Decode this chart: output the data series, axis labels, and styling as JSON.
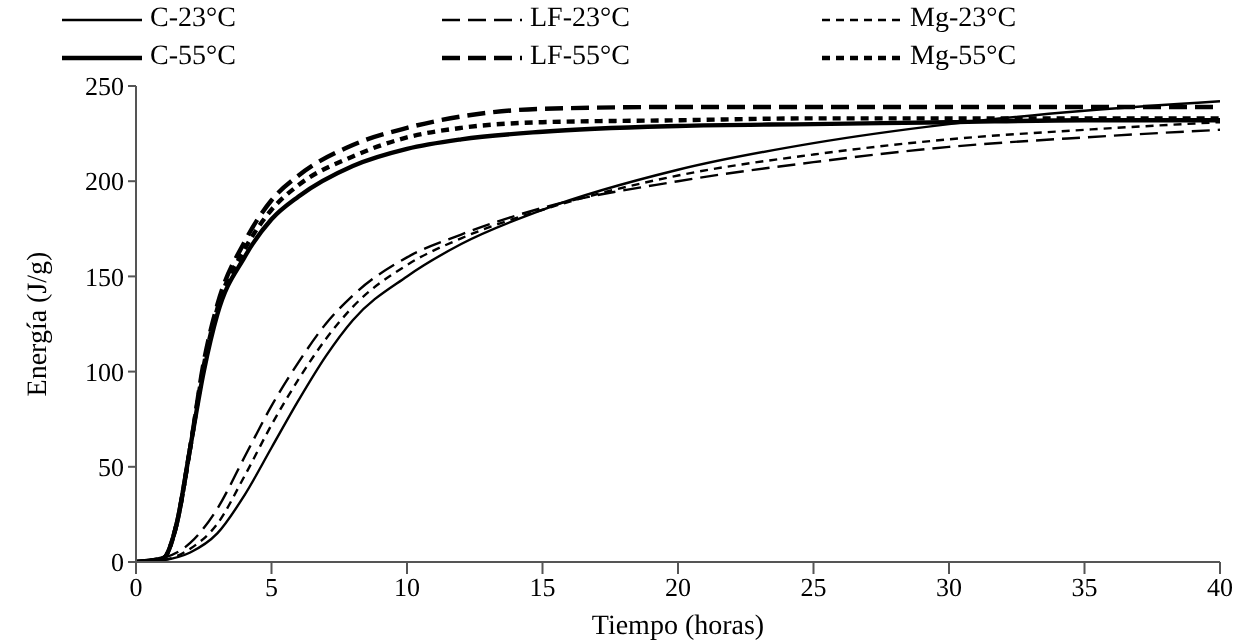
{
  "chart_data": {
    "type": "line",
    "xlabel": "Tiempo (horas)",
    "ylabel": "Energía (J/g)",
    "xlim": [
      0,
      40
    ],
    "xticks": [
      0,
      5,
      10,
      15,
      20,
      25,
      30,
      35,
      40
    ],
    "ylim": [
      0,
      250
    ],
    "yticks": [
      0,
      50,
      100,
      150,
      200,
      250
    ],
    "grid": false,
    "legend": "top",
    "marker": "none",
    "series": [
      {
        "name": "C-23°C",
        "color": "#000000",
        "line_style": "solid",
        "x": [
          0,
          1,
          2,
          3,
          4,
          5,
          6,
          7,
          8,
          10,
          12,
          15,
          20,
          25,
          30,
          35,
          40
        ],
        "values": [
          0,
          1,
          5,
          15,
          35,
          60,
          85,
          108,
          127,
          150,
          167,
          185,
          206,
          220,
          230,
          237,
          242
        ]
      },
      {
        "name": "LF-23°C",
        "color": "#000000",
        "line_style": "dashed",
        "x": [
          0,
          1,
          2,
          3,
          4,
          5,
          6,
          7,
          8,
          10,
          12,
          15,
          20,
          25,
          30,
          35,
          40
        ],
        "values": [
          0,
          2,
          10,
          28,
          55,
          82,
          105,
          125,
          140,
          160,
          172,
          186,
          200,
          210,
          218,
          223,
          227
        ]
      },
      {
        "name": "Mg-23°C",
        "color": "#000000",
        "line_style": "dotted",
        "x": [
          0,
          1,
          2,
          3,
          4,
          5,
          6,
          7,
          8,
          10,
          12,
          15,
          20,
          25,
          30,
          35,
          40
        ],
        "values": [
          0,
          1,
          7,
          20,
          45,
          72,
          96,
          117,
          134,
          156,
          170,
          185,
          203,
          214,
          222,
          227,
          231
        ]
      },
      {
        "name": "C-55°C",
        "color": "#000000",
        "line_style": "solid",
        "x": [
          0,
          1,
          1.5,
          2,
          2.5,
          3,
          4,
          5,
          6,
          8,
          10,
          12,
          15,
          20,
          25,
          30,
          35,
          40
        ],
        "values": [
          0,
          2,
          20,
          60,
          100,
          130,
          160,
          180,
          192,
          208,
          217,
          222,
          226,
          229,
          230,
          231,
          232,
          232
        ]
      },
      {
        "name": "LF-55°C",
        "color": "#000000",
        "line_style": "dashed",
        "x": [
          0,
          1,
          1.5,
          2,
          2.5,
          3,
          4,
          5,
          6,
          8,
          10,
          12,
          15,
          20,
          25,
          30,
          35,
          40
        ],
        "values": [
          0,
          2,
          20,
          60,
          105,
          135,
          168,
          190,
          203,
          219,
          228,
          234,
          238,
          239,
          239,
          239,
          239,
          239
        ]
      },
      {
        "name": "Mg-55°C",
        "color": "#000000",
        "line_style": "dotted",
        "x": [
          0,
          1,
          1.5,
          2,
          2.5,
          3,
          4,
          5,
          6,
          8,
          10,
          12,
          15,
          20,
          25,
          30,
          35,
          40
        ],
        "values": [
          0,
          2,
          20,
          60,
          103,
          133,
          164,
          185,
          198,
          213,
          223,
          228,
          231,
          232,
          233,
          233,
          233,
          233
        ]
      }
    ]
  }
}
